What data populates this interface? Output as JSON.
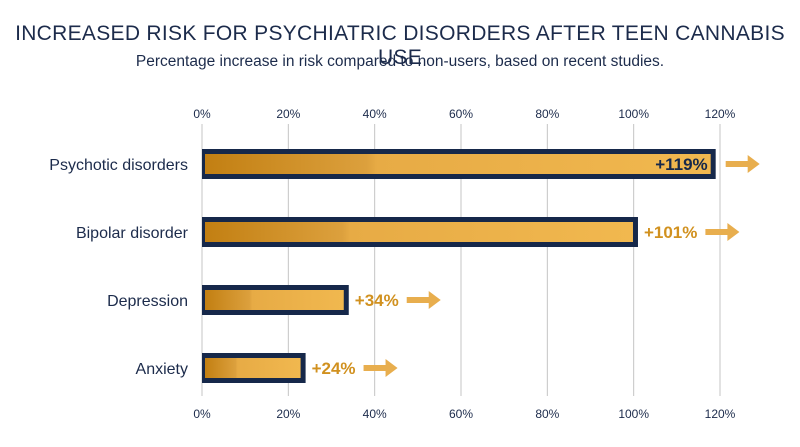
{
  "title": "INCREASED RISK FOR PSYCHIATRIC DISORDERS AFTER TEEN CANNABIS USE",
  "subtitle": "Percentage increase in risk compared to non-users, based on recent studies.",
  "colors": {
    "text": "#1c2b4b",
    "bar_border": "#16284a",
    "bar_dark": "#c27f12",
    "bar_light": "#f1b84f",
    "label": "#d1911f",
    "arrow": "#e8ae4e",
    "grid": "#c4c4c4"
  },
  "chart_data": {
    "type": "bar",
    "orientation": "horizontal",
    "title": "INCREASED RISK FOR PSYCHIATRIC DISORDERS AFTER TEEN CANNABIS USE",
    "subtitle": "Percentage increase in risk compared to non-users, based on recent studies.",
    "categories": [
      "Psychotic disorders",
      "Bipolar disorder",
      "Depression",
      "Anxiety"
    ],
    "values": [
      119,
      101,
      34,
      24
    ],
    "data_labels": [
      "+119%",
      "+101%",
      "+34%",
      "+24%"
    ],
    "xlim": [
      0,
      120
    ],
    "xticks": [
      0,
      20,
      40,
      60,
      80,
      100,
      120
    ],
    "tick_labels": [
      "0%",
      "20%",
      "40%",
      "60%",
      "80%",
      "100%",
      "120%"
    ],
    "axis_labels_top_and_bottom": true,
    "grid": true,
    "xlabel": "",
    "ylabel": ""
  }
}
